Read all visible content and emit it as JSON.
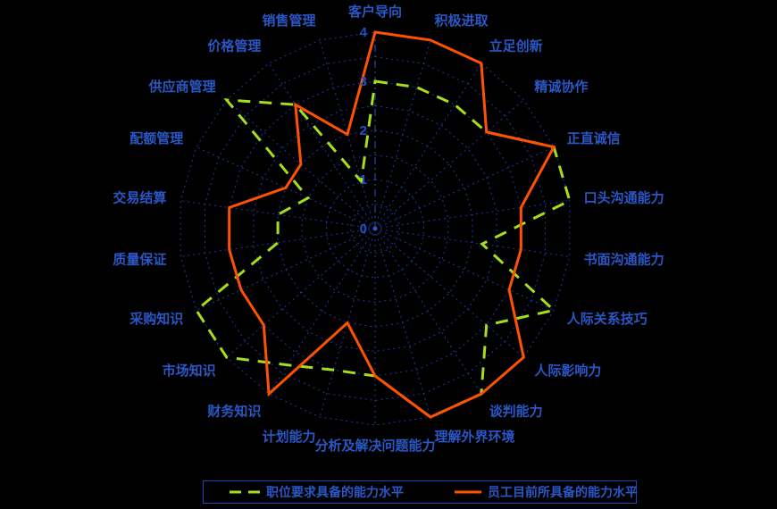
{
  "background_color": "#000000",
  "chart_data": {
    "type": "radar",
    "title": "",
    "categories": [
      "客户导向",
      "积极进取",
      "立足创新",
      "精诚协作",
      "正直诚信",
      "口头沟通能力",
      "书面沟通能力",
      "人际关系技巧",
      "人际影响力",
      "谈判能力",
      "理解外界环境",
      "分析及解决问题能力",
      "计划能力",
      "财务知识",
      "市场知识",
      "采购知识",
      "质量保证",
      "交易结算",
      "配额管理",
      "供应商管理",
      "价格管理",
      "销售管理"
    ],
    "series": [
      {
        "name": "职位要求具备的能力水平",
        "style": "dashed",
        "color": "#A6DF1A",
        "values": [
          3,
          3,
          3,
          3,
          4,
          4,
          2.2,
          4,
          3,
          4,
          4,
          3,
          3,
          3.3,
          4,
          4,
          2,
          2,
          1.5,
          4,
          3,
          1
        ]
      },
      {
        "name": "员工目前所具备的能力水平",
        "style": "solid",
        "color": "#FF5200",
        "values": [
          4,
          4,
          4,
          3,
          4,
          3,
          3,
          3,
          4,
          4,
          4,
          3,
          2,
          4,
          3,
          3,
          3,
          3,
          2,
          2,
          3,
          2
        ]
      }
    ],
    "ticks": [
      "0",
      "1",
      "2",
      "3",
      "4"
    ],
    "rmin": 0,
    "rmax": 4,
    "ring_step": 0.5,
    "grid_on": true,
    "grid_color": "#1B3CA0",
    "axis_label_color": "#2A57C5",
    "legend_position": "bottom"
  },
  "legend": {
    "items": [
      {
        "label": "职位要求具备的能力水平",
        "sample": "green-dashed-line"
      },
      {
        "label": "员工目前所具备的能力水平",
        "sample": "orange-solid-line"
      }
    ]
  }
}
